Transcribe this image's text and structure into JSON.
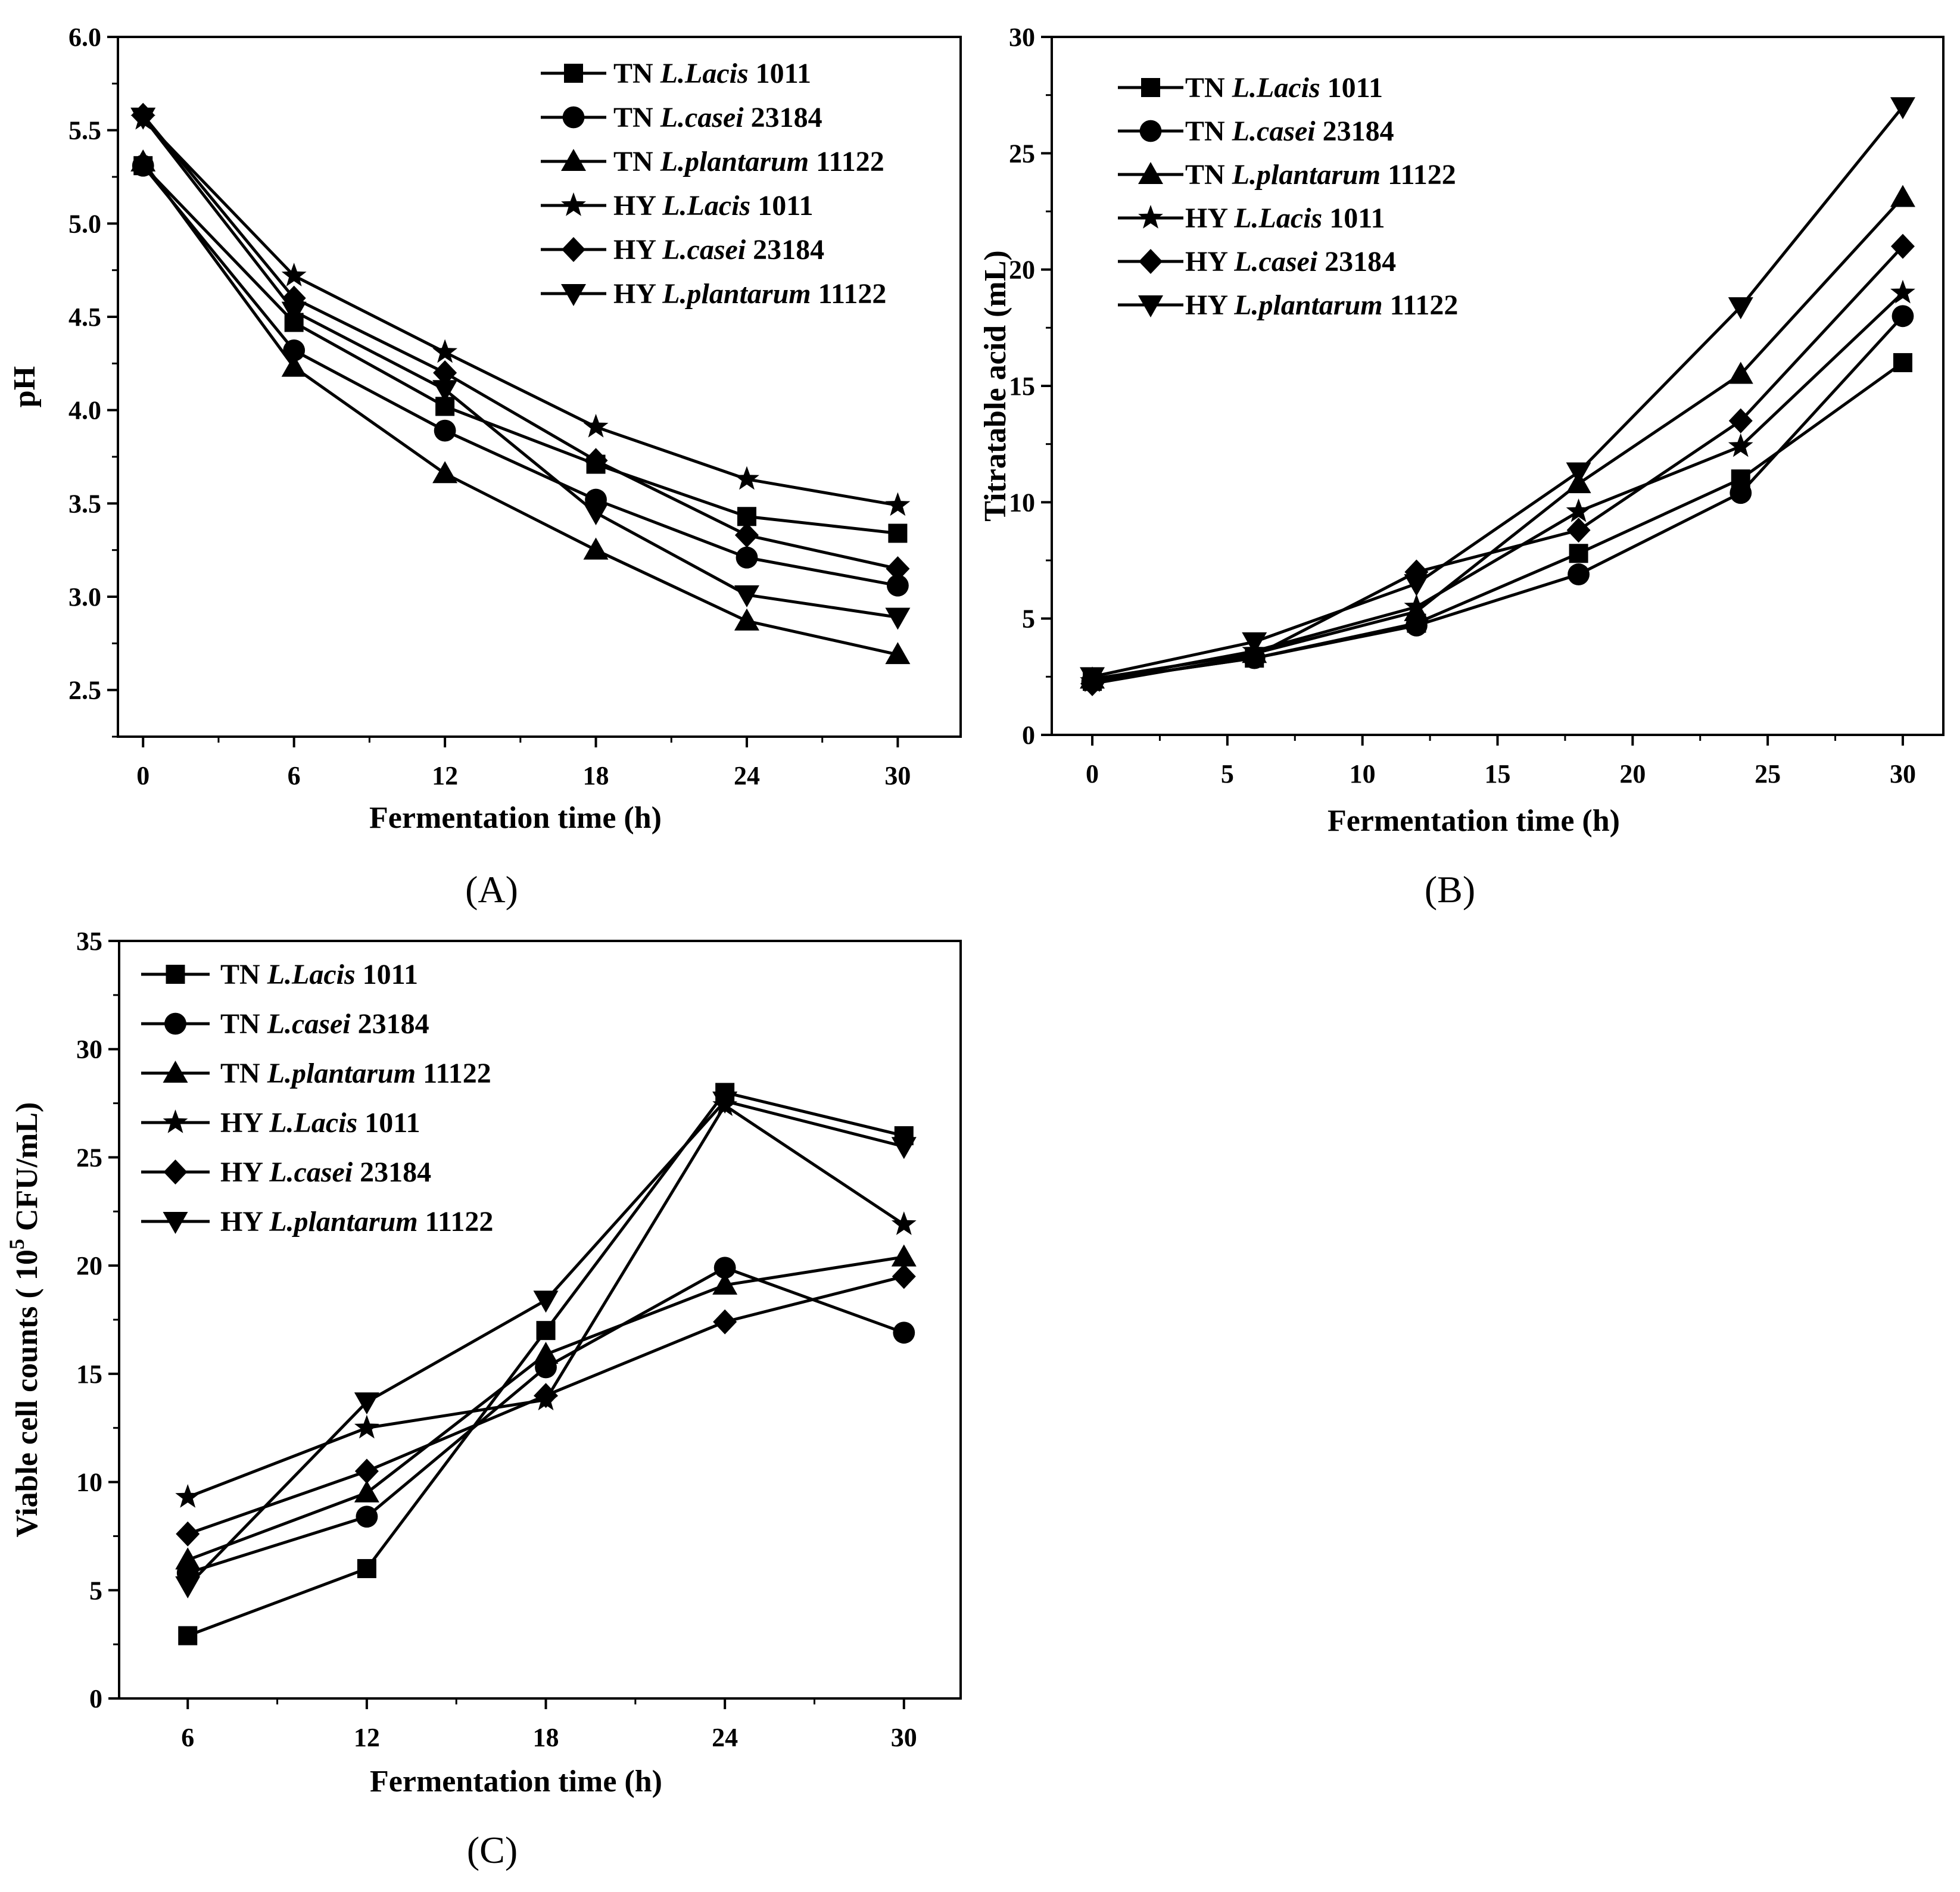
{
  "chart_data": [
    {
      "type": "line",
      "panel": "(A)",
      "xlabel": "Fermentation time (h)",
      "ylabel": "pH",
      "x": [
        0,
        6,
        12,
        18,
        24,
        30
      ],
      "xticks": [
        "0",
        "6",
        "12",
        "18",
        "24",
        "30"
      ],
      "yticks": [
        "2.5",
        "3.0",
        "3.5",
        "4.0",
        "4.5",
        "5.0",
        "5.5",
        "6.0"
      ],
      "xlim": [
        -1,
        32.5
      ],
      "ylim": [
        2.25,
        6.0
      ],
      "legend_position": "top-right",
      "series": [
        {
          "name": "TN L.Lacis 1011",
          "prefix": "TN ",
          "species": "L.Lacis",
          "strain": " 1011",
          "marker": "square",
          "values": [
            5.31,
            4.47,
            4.02,
            3.71,
            3.43,
            3.34
          ]
        },
        {
          "name": "TN L.casei 23184",
          "prefix": "TN ",
          "species": "L.casei",
          "strain": " 23184",
          "marker": "circle",
          "values": [
            5.31,
            4.32,
            3.89,
            3.52,
            3.21,
            3.06
          ]
        },
        {
          "name": "TN L.plantarum 11122",
          "prefix": "TN ",
          "species": "L.plantarum",
          "strain": " 11122",
          "marker": "triangle-up",
          "values": [
            5.33,
            4.23,
            3.66,
            3.25,
            2.87,
            2.69
          ]
        },
        {
          "name": "HY L.Lacis 1011",
          "prefix": "HY ",
          "species": "L.Lacis",
          "strain": " 1011",
          "marker": "star",
          "values": [
            5.56,
            4.72,
            4.31,
            3.91,
            3.63,
            3.49
          ]
        },
        {
          "name": "HY L.casei 23184",
          "prefix": "HY ",
          "species": "L.casei",
          "strain": " 23184",
          "marker": "diamond",
          "values": [
            5.58,
            4.6,
            4.2,
            3.73,
            3.33,
            3.15
          ]
        },
        {
          "name": "HY L.plantarum 11122",
          "prefix": "HY ",
          "species": "L.plantarum",
          "strain": " 11122",
          "marker": "triangle-down",
          "values": [
            5.57,
            4.53,
            4.11,
            3.45,
            3.01,
            2.89
          ]
        }
      ]
    },
    {
      "type": "line",
      "panel": "(B)",
      "xlabel": "Fermentation time (h)",
      "ylabel": "Titratable acid (mL)",
      "x": [
        0,
        6,
        12,
        18,
        24,
        30
      ],
      "xticks": [
        "0",
        "5",
        "10",
        "15",
        "20",
        "25",
        "30"
      ],
      "yticks": [
        "0",
        "5",
        "10",
        "15",
        "20",
        "25",
        "30"
      ],
      "xlim": [
        -1.5,
        31.5
      ],
      "ylim": [
        0,
        30
      ],
      "legend_position": "top-left",
      "series": [
        {
          "name": "TN L.Lacis 1011",
          "prefix": "TN ",
          "species": "L.Lacis",
          "strain": " 1011",
          "marker": "square",
          "values": [
            2.3,
            3.3,
            4.8,
            7.8,
            11.0,
            16.0
          ]
        },
        {
          "name": "TN L.casei 23184",
          "prefix": "TN ",
          "species": "L.casei",
          "strain": " 23184",
          "marker": "circle",
          "values": [
            2.3,
            3.3,
            4.7,
            6.9,
            10.4,
            18.0
          ]
        },
        {
          "name": "TN L.plantarum 11122",
          "prefix": "TN ",
          "species": "L.plantarum",
          "strain": " 11122",
          "marker": "triangle-up",
          "values": [
            2.4,
            3.5,
            5.3,
            10.8,
            15.5,
            23.1
          ]
        },
        {
          "name": "HY L.Lacis 1011",
          "prefix": "HY ",
          "species": "L.Lacis",
          "strain": " 1011",
          "marker": "star",
          "values": [
            2.3,
            3.6,
            5.5,
            9.6,
            12.4,
            19.0
          ]
        },
        {
          "name": "HY L.casei 23184",
          "prefix": "HY ",
          "species": "L.casei",
          "strain": " 23184",
          "marker": "diamond",
          "values": [
            2.2,
            3.4,
            7.0,
            8.8,
            13.5,
            21.0
          ]
        },
        {
          "name": "HY L.plantarum 11122",
          "prefix": "HY ",
          "species": "L.plantarum",
          "strain": " 11122",
          "marker": "triangle-down",
          "values": [
            2.5,
            4.0,
            6.5,
            11.3,
            18.4,
            27.0
          ]
        }
      ]
    },
    {
      "type": "line",
      "panel": "(C)",
      "xlabel": "Fermentation time (h)",
      "ylabel_prefix": "Viable cell counts ( 10",
      "ylabel_sup": "5",
      "ylabel_suffix": " CFU/mL)",
      "x": [
        6,
        12,
        18,
        24,
        30
      ],
      "xticks": [
        "6",
        "12",
        "18",
        "24",
        "30"
      ],
      "yticks": [
        "0",
        "5",
        "10",
        "15",
        "20",
        "25",
        "30",
        "35"
      ],
      "xlim": [
        3.7,
        31.9
      ],
      "ylim": [
        0,
        35
      ],
      "legend_position": "top-left",
      "series": [
        {
          "name": "TN L.Lacis 1011",
          "prefix": "TN ",
          "species": "L.Lacis",
          "strain": " 1011",
          "marker": "square",
          "values": [
            2.9,
            6.0,
            17.0,
            28.0,
            26.0
          ]
        },
        {
          "name": "TN L.casei 23184",
          "prefix": "TN ",
          "species": "L.casei",
          "strain": " 23184",
          "marker": "circle",
          "values": [
            5.8,
            8.4,
            15.3,
            19.9,
            16.9
          ]
        },
        {
          "name": "TN L.plantarum 11122",
          "prefix": "TN ",
          "species": "L.plantarum",
          "strain": " 11122",
          "marker": "triangle-up",
          "values": [
            6.4,
            9.5,
            15.9,
            19.1,
            20.4
          ]
        },
        {
          "name": "HY L.Lacis 1011",
          "prefix": "HY ",
          "species": "L.Lacis",
          "strain": " 1011",
          "marker": "star",
          "values": [
            9.3,
            12.5,
            13.8,
            27.4,
            21.9
          ]
        },
        {
          "name": "HY L.casei 23184",
          "prefix": "HY ",
          "species": "L.casei",
          "strain": " 23184",
          "marker": "diamond",
          "values": [
            7.6,
            10.5,
            14.0,
            17.4,
            19.5
          ]
        },
        {
          "name": "HY L.plantarum 11122",
          "prefix": "HY ",
          "species": "L.plantarum",
          "strain": " 11122",
          "marker": "triangle-down",
          "values": [
            5.2,
            13.7,
            18.4,
            27.6,
            25.5
          ]
        }
      ]
    }
  ]
}
